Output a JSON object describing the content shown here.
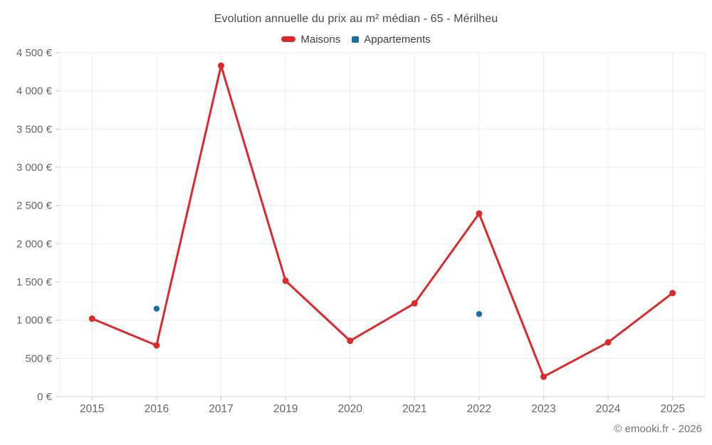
{
  "title": "Evolution annuelle du prix au m² médian - 65 - Mérilheu",
  "legend": [
    {
      "label": "Maisons",
      "color": "#dc2a2c",
      "marker": "dash"
    },
    {
      "label": "Appartements",
      "color": "#1a6fa8",
      "marker": "square"
    }
  ],
  "footer": "© emooki.fr - 2026",
  "colors": {
    "maisons": "#dc2a2c",
    "appartements": "#1a6fa8",
    "gridline": "#ececec",
    "axis_line": "#d6d6d6",
    "tick": "#c8c8c8",
    "axis_text": "#666666",
    "title_text": "#4a4a4a"
  },
  "chart_data": {
    "type": "line",
    "title": "Evolution annuelle du prix au m² médian - 65 - Mérilheu",
    "categories": [
      "2015",
      "2016",
      "2017",
      "2019",
      "2020",
      "2021",
      "2022",
      "2023",
      "2024",
      "2025"
    ],
    "series": [
      {
        "name": "Maisons",
        "style": "line+marker",
        "color": "#dc2a2c",
        "values": [
          1020,
          670,
          4330,
          1515,
          730,
          1220,
          2395,
          260,
          710,
          1355
        ]
      },
      {
        "name": "Appartements",
        "style": "marker",
        "color": "#1a6fa8",
        "values": [
          null,
          1150,
          null,
          null,
          null,
          null,
          1080,
          null,
          null,
          null
        ]
      }
    ],
    "xlabel": "",
    "ylabel": "",
    "ylim": [
      0,
      4500
    ],
    "ytick_step": 500,
    "ytick_suffix": " €",
    "grid": true,
    "legend_position": "top"
  }
}
